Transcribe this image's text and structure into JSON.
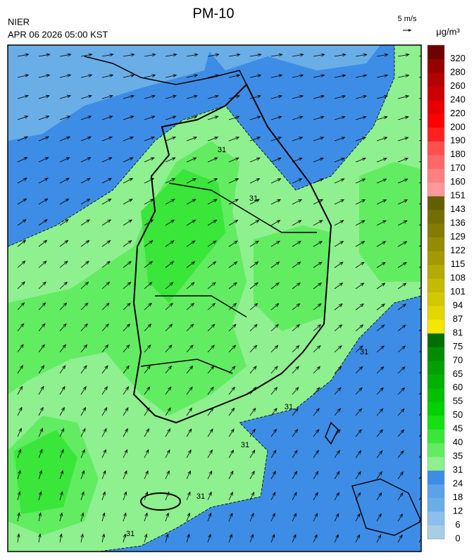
{
  "title": "PM-10",
  "source": "NIER",
  "timestamp": "APR 06 2026 05:00 KST",
  "wind_scale": "5 m/s",
  "unit": "μg/m³",
  "colorbar": {
    "levels": [
      0,
      6,
      12,
      18,
      24,
      31,
      35,
      40,
      45,
      50,
      55,
      60,
      65,
      70,
      75,
      81,
      87,
      94,
      101,
      108,
      115,
      122,
      129,
      136,
      143,
      151,
      160,
      170,
      180,
      190,
      200,
      220,
      240,
      260,
      280,
      320
    ],
    "colors": [
      "#a6cfe6",
      "#8cc0ea",
      "#6aaee8",
      "#5aa2ea",
      "#3d8de6",
      "#8ef08e",
      "#62ec62",
      "#3ae63a",
      "#14e014",
      "#00d000",
      "#00c000",
      "#00b000",
      "#00a000",
      "#008c00",
      "#006e00",
      "#f5e800",
      "#e0d800",
      "#d2c800",
      "#c4ba00",
      "#b4aa00",
      "#a49a00",
      "#948c00",
      "#847c00",
      "#746e00",
      "#645e00",
      "#ff9898",
      "#ff8080",
      "#ff6868",
      "#ff5050",
      "#ff2020",
      "#ff0000",
      "#e60000",
      "#cc0000",
      "#b40000",
      "#960000",
      "#6e0000"
    ]
  },
  "contour_labels": [
    "31",
    "31",
    "31",
    "31",
    "31",
    "31",
    "31"
  ]
}
